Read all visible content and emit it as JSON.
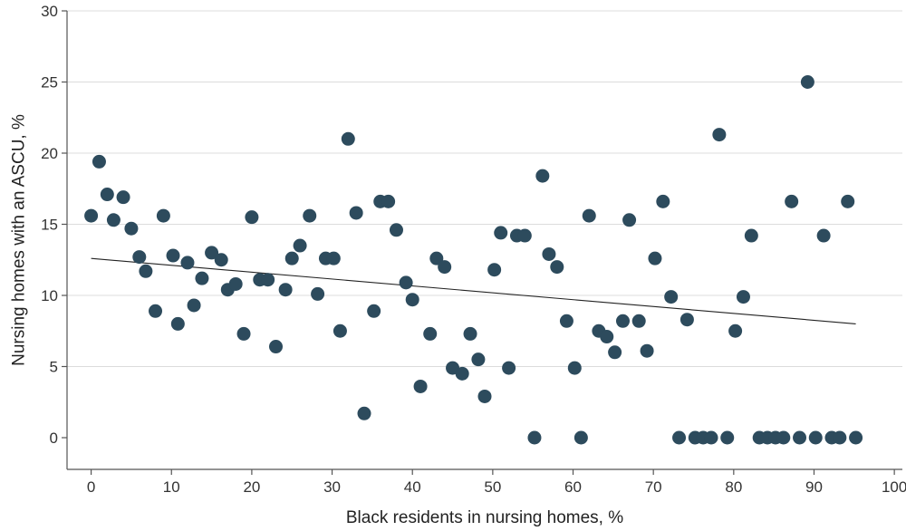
{
  "chart_data": {
    "type": "scatter",
    "xlabel": "Black residents in nursing homes, %",
    "ylabel": "Nursing homes with an ASCU, %",
    "xlim": [
      -3,
      101
    ],
    "ylim": [
      0,
      30
    ],
    "xticks": [
      0,
      10,
      20,
      30,
      40,
      50,
      60,
      70,
      80,
      90,
      100
    ],
    "yticks": [
      0,
      5,
      10,
      15,
      20,
      25,
      30
    ],
    "grid": "horizontal",
    "colors": {
      "point": "#2d4b5d",
      "trend": "#222222"
    },
    "points": [
      [
        0,
        15.6
      ],
      [
        1,
        19.4
      ],
      [
        2,
        17.1
      ],
      [
        2.8,
        15.3
      ],
      [
        4,
        16.9
      ],
      [
        5,
        14.7
      ],
      [
        6,
        12.7
      ],
      [
        6.8,
        11.7
      ],
      [
        8,
        8.9
      ],
      [
        9,
        15.6
      ],
      [
        10.2,
        12.8
      ],
      [
        10.8,
        8.0
      ],
      [
        12,
        12.3
      ],
      [
        12.8,
        9.3
      ],
      [
        13.8,
        11.2
      ],
      [
        15,
        13.0
      ],
      [
        16.2,
        12.5
      ],
      [
        17,
        10.4
      ],
      [
        18,
        10.8
      ],
      [
        19,
        7.3
      ],
      [
        20,
        15.5
      ],
      [
        21,
        11.1
      ],
      [
        22,
        11.1
      ],
      [
        23,
        6.4
      ],
      [
        24.2,
        10.4
      ],
      [
        25,
        12.6
      ],
      [
        26,
        13.5
      ],
      [
        27.2,
        15.6
      ],
      [
        28.2,
        10.1
      ],
      [
        29.2,
        12.6
      ],
      [
        30.2,
        12.6
      ],
      [
        31,
        7.5
      ],
      [
        32,
        21.0
      ],
      [
        33,
        15.8
      ],
      [
        34,
        1.7
      ],
      [
        35.2,
        8.9
      ],
      [
        36,
        16.6
      ],
      [
        37,
        16.6
      ],
      [
        38,
        14.6
      ],
      [
        39.2,
        10.9
      ],
      [
        40,
        9.7
      ],
      [
        41,
        3.6
      ],
      [
        42.2,
        7.3
      ],
      [
        43,
        12.6
      ],
      [
        44,
        12.0
      ],
      [
        45,
        4.9
      ],
      [
        46.2,
        4.5
      ],
      [
        47.2,
        7.3
      ],
      [
        48.2,
        5.5
      ],
      [
        49,
        2.9
      ],
      [
        50.2,
        11.8
      ],
      [
        51,
        14.4
      ],
      [
        52,
        4.9
      ],
      [
        53,
        14.2
      ],
      [
        54,
        14.2
      ],
      [
        55.2,
        0
      ],
      [
        56.2,
        18.4
      ],
      [
        57,
        12.9
      ],
      [
        58,
        12.0
      ],
      [
        59.2,
        8.2
      ],
      [
        60.2,
        4.9
      ],
      [
        61,
        0
      ],
      [
        62,
        15.6
      ],
      [
        63.2,
        7.5
      ],
      [
        64.2,
        7.1
      ],
      [
        65.2,
        6.0
      ],
      [
        66.2,
        8.2
      ],
      [
        67,
        15.3
      ],
      [
        68.2,
        8.2
      ],
      [
        69.2,
        6.1
      ],
      [
        70.2,
        12.6
      ],
      [
        71.2,
        16.6
      ],
      [
        72.2,
        9.9
      ],
      [
        73.2,
        0
      ],
      [
        74.2,
        8.3
      ],
      [
        75.2,
        0
      ],
      [
        76.2,
        0
      ],
      [
        77.2,
        0
      ],
      [
        78.2,
        21.3
      ],
      [
        79.2,
        0
      ],
      [
        80.2,
        7.5
      ],
      [
        81.2,
        9.9
      ],
      [
        82.2,
        14.2
      ],
      [
        83.2,
        0
      ],
      [
        84.2,
        0
      ],
      [
        85.2,
        0
      ],
      [
        86.2,
        0
      ],
      [
        87.2,
        16.6
      ],
      [
        88.2,
        0
      ],
      [
        89.2,
        25.0
      ],
      [
        90.2,
        0
      ],
      [
        91.2,
        14.2
      ],
      [
        92.2,
        0
      ],
      [
        93.2,
        0
      ],
      [
        94.2,
        16.6
      ],
      [
        95.2,
        0
      ]
    ],
    "trendline": {
      "x": [
        0,
        95.2
      ],
      "y": [
        12.6,
        8.0
      ]
    }
  }
}
